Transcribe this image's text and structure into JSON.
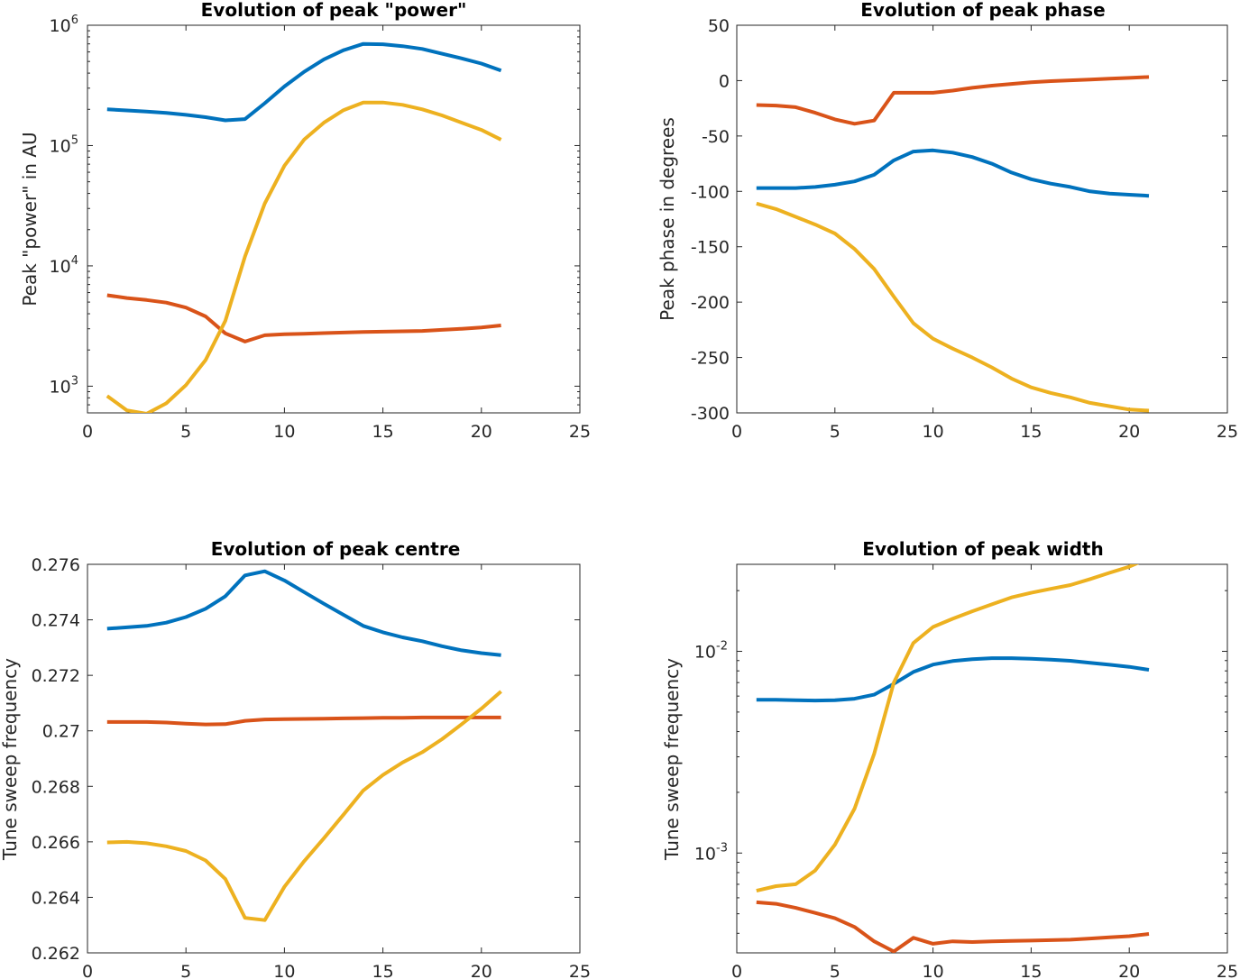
{
  "colors": {
    "series_1": "#0072BD",
    "series_2": "#D95319",
    "series_3": "#EDB120",
    "axis": "#262626"
  },
  "chart_data": [
    {
      "type": "line",
      "title": "Evolution of peak \"power\"",
      "xlabel": "",
      "ylabel": "Peak \"power\" in AU",
      "yscale": "log",
      "xlim": [
        0,
        25
      ],
      "ylim": [
        600,
        1000000
      ],
      "xticks": [
        0,
        5,
        10,
        15,
        20,
        25
      ],
      "yticks": [
        {
          "value": 1000,
          "base": "10",
          "exp": "3"
        },
        {
          "value": 10000,
          "base": "10",
          "exp": "4"
        },
        {
          "value": 100000,
          "base": "10",
          "exp": "5"
        },
        {
          "value": 1000000,
          "base": "10",
          "exp": "6"
        }
      ],
      "x": [
        1,
        2,
        3,
        4,
        5,
        6,
        7,
        8,
        9,
        10,
        11,
        12,
        13,
        14,
        15,
        16,
        17,
        18,
        19,
        20,
        21
      ],
      "series": [
        {
          "color": "#0072BD",
          "values": [
            200000,
            196000,
            192000,
            187000,
            180000,
            172000,
            162000,
            166000,
            225000,
            310000,
            410000,
            520000,
            620000,
            700000,
            695000,
            670000,
            635000,
            580000,
            530000,
            480000,
            420000
          ]
        },
        {
          "color": "#D95319",
          "values": [
            5700,
            5400,
            5200,
            4950,
            4500,
            3800,
            2750,
            2350,
            2650,
            2700,
            2730,
            2760,
            2790,
            2820,
            2840,
            2860,
            2880,
            2940,
            3000,
            3080,
            3200
          ]
        },
        {
          "color": "#EDB120",
          "values": [
            830,
            630,
            590,
            720,
            1020,
            1650,
            3500,
            12000,
            33000,
            68000,
            112000,
            155000,
            197000,
            228000,
            228000,
            218000,
            200000,
            178000,
            155000,
            135000,
            112000
          ]
        }
      ]
    },
    {
      "type": "line",
      "title": "Evolution of peak phase",
      "xlabel": "",
      "ylabel": "Peak phase in degrees",
      "yscale": "linear",
      "xlim": [
        0,
        25
      ],
      "ylim": [
        -300,
        50
      ],
      "xticks": [
        0,
        5,
        10,
        15,
        20,
        25
      ],
      "yticks": [
        50,
        0,
        -50,
        -100,
        -150,
        -200,
        -250,
        -300
      ],
      "x": [
        1,
        2,
        3,
        4,
        5,
        6,
        7,
        8,
        9,
        10,
        11,
        12,
        13,
        14,
        15,
        16,
        17,
        18,
        19,
        20,
        21
      ],
      "series": [
        {
          "color": "#0072BD",
          "values": [
            -97,
            -97,
            -97,
            -96,
            -94,
            -91,
            -85,
            -72,
            -64,
            -63,
            -65,
            -69,
            -75,
            -83,
            -89,
            -93,
            -96,
            -100,
            -102,
            -103,
            -104
          ]
        },
        {
          "color": "#D95319",
          "values": [
            -22,
            -22.5,
            -24,
            -29,
            -35,
            -39,
            -36,
            -11,
            -11,
            -11,
            -9,
            -6.5,
            -4.5,
            -3,
            -1.5,
            -0.5,
            0.3,
            1,
            1.8,
            2.5,
            3.3
          ]
        },
        {
          "color": "#EDB120",
          "values": [
            -111,
            -116,
            -123,
            -130,
            -138,
            -152,
            -170,
            -195,
            -219,
            -233,
            -242,
            -250,
            -259,
            -269,
            -277,
            -282,
            -286,
            -291,
            -294,
            -297,
            -298
          ]
        }
      ]
    },
    {
      "type": "line",
      "title": "Evolution of peak centre",
      "xlabel": "",
      "ylabel": "Tune sweep frequency",
      "yscale": "linear",
      "xlim": [
        0,
        25
      ],
      "ylim": [
        0.262,
        0.276
      ],
      "xticks": [
        0,
        5,
        10,
        15,
        20,
        25
      ],
      "yticks": [
        "0.276",
        "0.274",
        "0.272",
        "0.27",
        "0.268",
        "0.266",
        "0.264",
        "0.262"
      ],
      "x": [
        1,
        2,
        3,
        4,
        5,
        6,
        7,
        8,
        9,
        10,
        11,
        12,
        13,
        14,
        15,
        16,
        17,
        18,
        19,
        20,
        21
      ],
      "series": [
        {
          "color": "#0072BD",
          "values": [
            0.27368,
            0.27373,
            0.27378,
            0.2739,
            0.2741,
            0.2744,
            0.27485,
            0.2756,
            0.27575,
            0.27542,
            0.275,
            0.27458,
            0.27418,
            0.27378,
            0.27355,
            0.27337,
            0.27323,
            0.27305,
            0.2729,
            0.2728,
            0.27273
          ]
        },
        {
          "color": "#D95319",
          "values": [
            0.27032,
            0.27032,
            0.27032,
            0.2703,
            0.27026,
            0.27023,
            0.27024,
            0.27036,
            0.27041,
            0.27042,
            0.27043,
            0.27044,
            0.27045,
            0.27046,
            0.27047,
            0.27047,
            0.27048,
            0.27048,
            0.27048,
            0.27048,
            0.27048
          ]
        },
        {
          "color": "#EDB120",
          "values": [
            0.26598,
            0.266,
            0.26595,
            0.26584,
            0.26567,
            0.26533,
            0.26466,
            0.26326,
            0.26318,
            0.26438,
            0.2653,
            0.26613,
            0.26698,
            0.26785,
            0.26841,
            0.26886,
            0.26923,
            0.2697,
            0.27024,
            0.2708,
            0.27142
          ]
        }
      ]
    },
    {
      "type": "line",
      "title": "Evolution of peak width",
      "xlabel": "",
      "ylabel": "Tune sweep frequency",
      "yscale": "log",
      "xlim": [
        0,
        25
      ],
      "ylim": [
        0.00032,
        0.027
      ],
      "xticks": [
        0,
        5,
        10,
        15,
        20,
        25
      ],
      "yticks": [
        {
          "value": 0.001,
          "base": "10",
          "exp": "-3"
        },
        {
          "value": 0.01,
          "base": "10",
          "exp": "-2"
        }
      ],
      "x": [
        1,
        2,
        3,
        4,
        5,
        6,
        7,
        8,
        9,
        10,
        11,
        12,
        13,
        14,
        15,
        16,
        17,
        18,
        19,
        20,
        21
      ],
      "series": [
        {
          "color": "#0072BD",
          "values": [
            0.00575,
            0.00575,
            0.00572,
            0.0057,
            0.00572,
            0.00582,
            0.0061,
            0.0069,
            0.0079,
            0.0086,
            0.00895,
            0.00915,
            0.00925,
            0.00925,
            0.00918,
            0.0091,
            0.00898,
            0.00878,
            0.00858,
            0.00838,
            0.0081
          ]
        },
        {
          "color": "#D95319",
          "values": [
            0.00057,
            0.00056,
            0.000535,
            0.000505,
            0.000475,
            0.00043,
            0.000365,
            0.000325,
            0.00038,
            0.000355,
            0.000365,
            0.000362,
            0.000365,
            0.000367,
            0.000368,
            0.00037,
            0.000372,
            0.000377,
            0.000382,
            0.000387,
            0.000397
          ]
        },
        {
          "color": "#EDB120",
          "values": [
            0.00065,
            0.000685,
            0.0007,
            0.00082,
            0.0011,
            0.00166,
            0.0031,
            0.007,
            0.011,
            0.0132,
            0.0145,
            0.0158,
            0.0171,
            0.0185,
            0.0195,
            0.0204,
            0.0213,
            0.0228,
            0.0245,
            0.0263,
            0.029
          ]
        }
      ]
    }
  ]
}
